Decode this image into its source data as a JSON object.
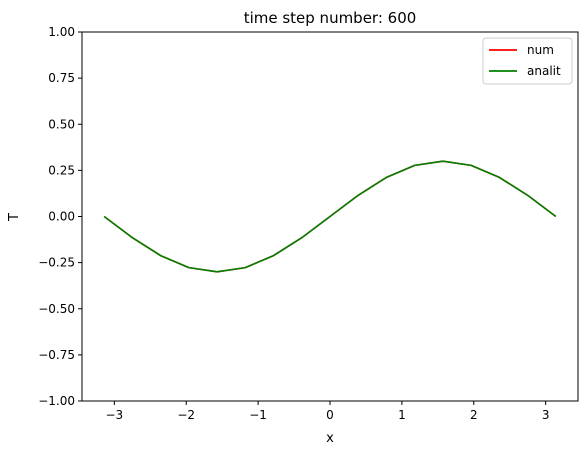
{
  "chart_data": {
    "type": "line",
    "title": "time step number: 600",
    "xlabel": "x",
    "ylabel": "T",
    "xlim": [
      -3.45,
      3.45
    ],
    "ylim": [
      -1.0,
      1.0
    ],
    "xticks": [
      -3,
      -2,
      -1,
      0,
      1,
      2,
      3
    ],
    "xtick_labels": [
      "−3",
      "−2",
      "−1",
      "0",
      "1",
      "2",
      "3"
    ],
    "yticks": [
      -1.0,
      -0.75,
      -0.5,
      -0.25,
      0.0,
      0.25,
      0.5,
      0.75,
      1.0
    ],
    "ytick_labels": [
      "−1.00",
      "−0.75",
      "−0.50",
      "−0.25",
      "0.00",
      "0.25",
      "0.50",
      "0.75",
      "1.00"
    ],
    "grid": false,
    "legend_position": "top-right",
    "x": [
      -3.1416,
      -2.7489,
      -2.3562,
      -1.9635,
      -1.5708,
      -1.1781,
      -0.7854,
      -0.3927,
      0.0,
      0.3927,
      0.7854,
      1.1781,
      1.5708,
      1.9635,
      2.3562,
      2.7489,
      3.1416
    ],
    "series": [
      {
        "name": "num",
        "color": "#ff0000",
        "values": [
          0.0,
          -0.115,
          -0.212,
          -0.277,
          -0.3,
          -0.277,
          -0.212,
          -0.115,
          0.0,
          0.115,
          0.212,
          0.277,
          0.3,
          0.277,
          0.212,
          0.115,
          0.0
        ]
      },
      {
        "name": "analit",
        "color": "#008000",
        "values": [
          0.0,
          -0.115,
          -0.212,
          -0.277,
          -0.3,
          -0.277,
          -0.212,
          -0.115,
          0.0,
          0.115,
          0.212,
          0.277,
          0.3,
          0.277,
          0.212,
          0.115,
          0.0
        ]
      }
    ]
  }
}
